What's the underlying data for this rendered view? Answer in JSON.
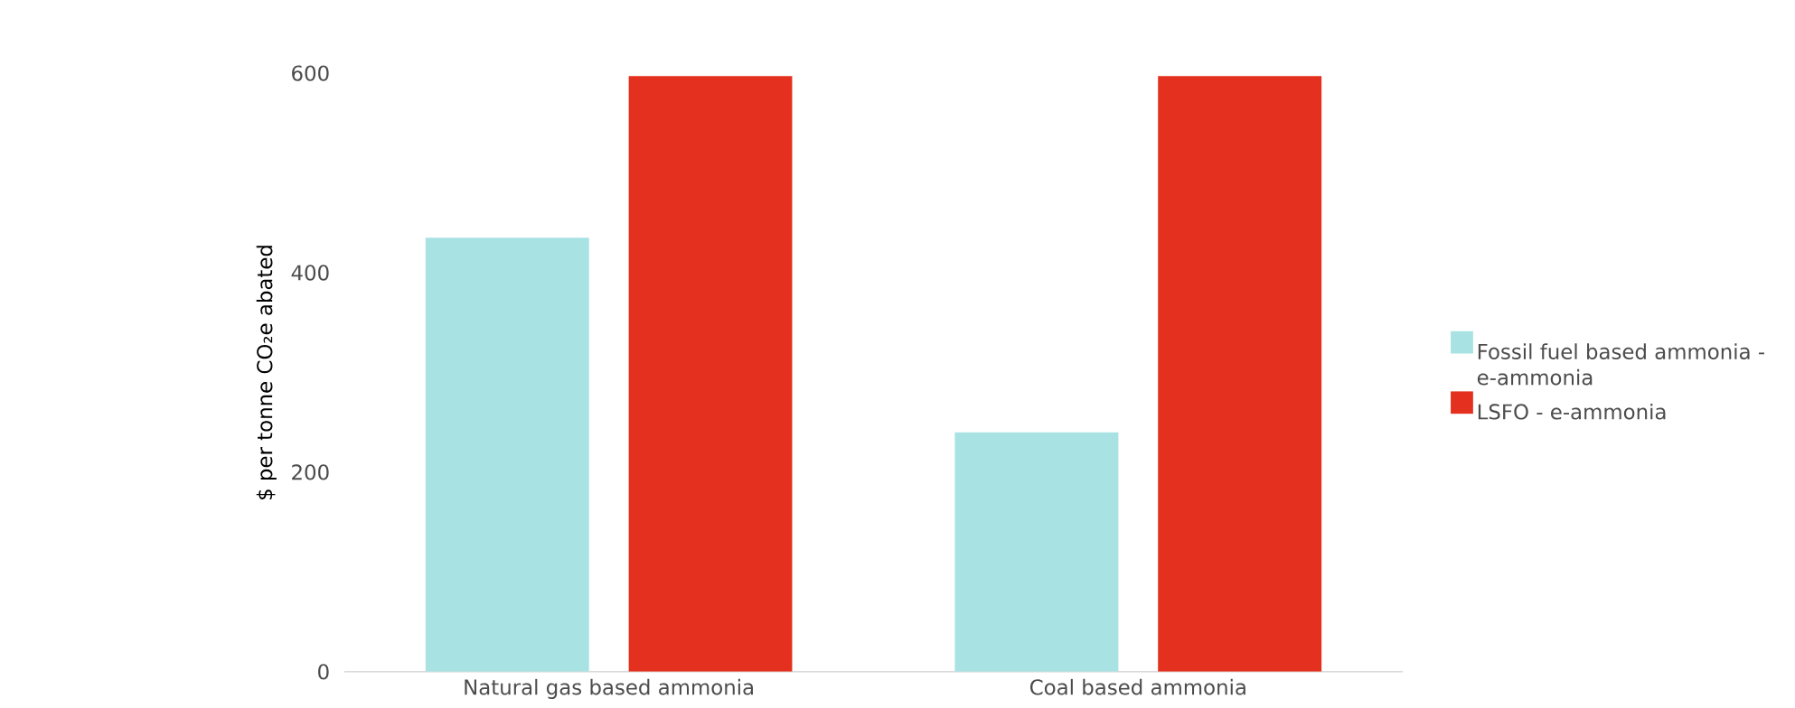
{
  "chart_data": {
    "type": "bar",
    "ylabel": "$ per tonne CO₂e abated",
    "categories": [
      "Natural gas based ammonia",
      "Coal based ammonia"
    ],
    "series": [
      {
        "name": "Fossil fuel based ammonia - e-ammonia",
        "color": "#a8e2e2",
        "values": [
          435,
          240
        ]
      },
      {
        "name": "LSFO - e-ammonia",
        "color": "#e4301e",
        "values": [
          597,
          597
        ]
      }
    ],
    "ylim": [
      0,
      600
    ],
    "yticks": [
      0,
      200,
      400,
      600
    ],
    "legend": "right"
  }
}
